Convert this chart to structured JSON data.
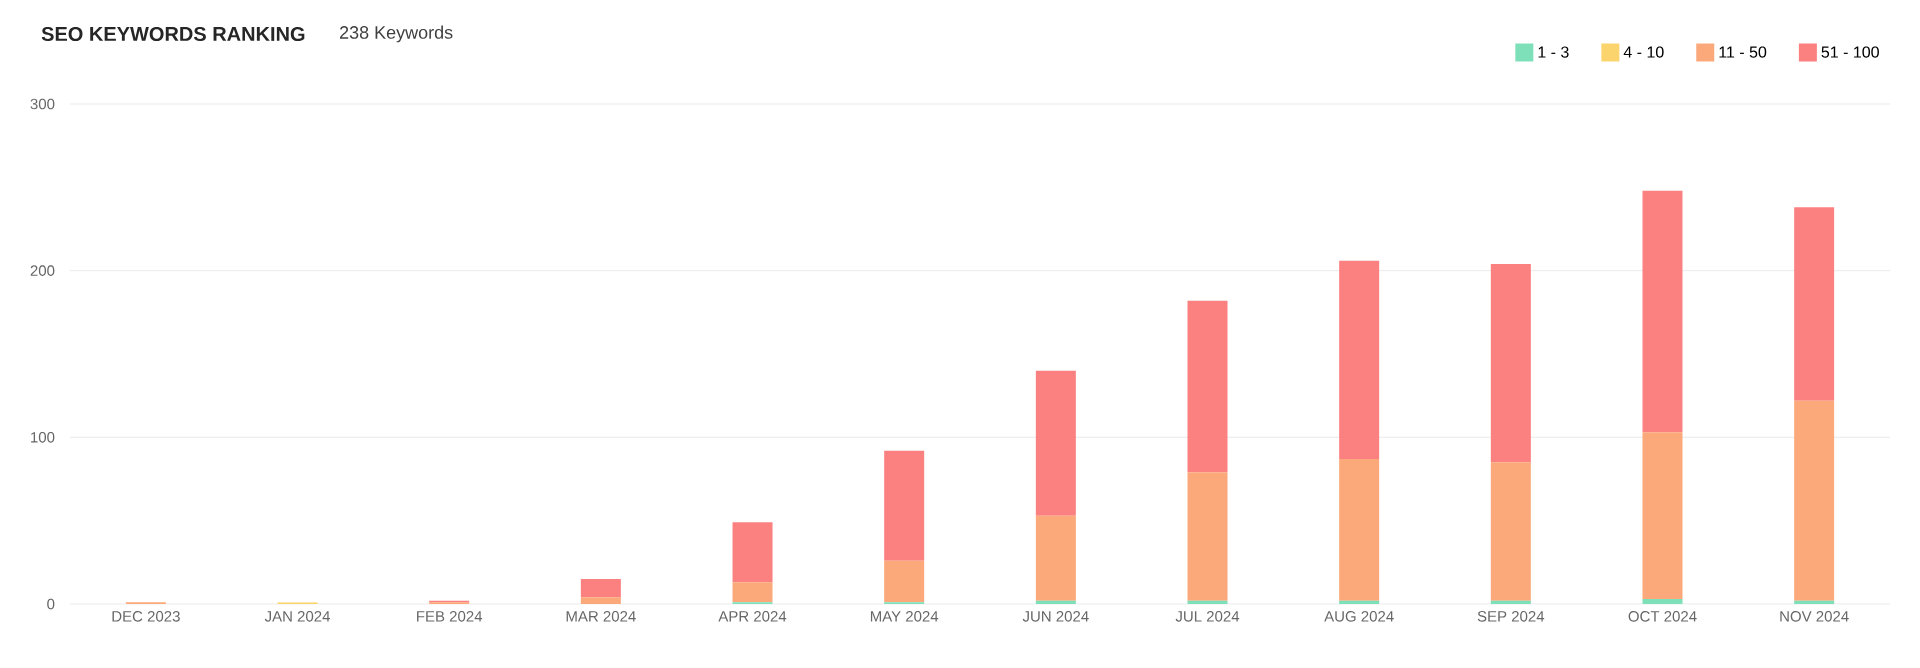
{
  "chart_data": {
    "type": "bar",
    "title": "SEO KEYWORDS RANKING",
    "subtitle": "238 Keywords",
    "categories": [
      "DEC 2023",
      "JAN 2024",
      "FEB 2024",
      "MAR 2024",
      "APR 2024",
      "MAY 2024",
      "JUN 2024",
      "JUL 2024",
      "AUG 2024",
      "SEP 2024",
      "OCT 2024",
      "NOV 2024"
    ],
    "stacked": true,
    "series": [
      {
        "name": "1 - 3",
        "color": "#7ee0b8",
        "values": [
          0,
          0,
          0,
          0,
          1,
          1,
          2,
          2,
          2,
          2,
          3,
          2
        ]
      },
      {
        "name": "4 - 10",
        "color": "#fbd46d",
        "values": [
          0,
          1,
          0,
          0,
          0,
          0,
          0,
          0,
          0,
          0,
          0,
          0
        ]
      },
      {
        "name": "11 - 50",
        "color": "#fba97a",
        "values": [
          1,
          0,
          1,
          4,
          12,
          25,
          51,
          77,
          85,
          83,
          100,
          120
        ]
      },
      {
        "name": "51 - 100",
        "color": "#fb8080",
        "values": [
          0,
          0,
          1,
          11,
          36,
          66,
          87,
          103,
          119,
          119,
          145,
          116
        ]
      }
    ],
    "ylim": [
      0,
      300
    ],
    "yticks": [
      0,
      100,
      200,
      300
    ],
    "grid": "y",
    "legend": "top right"
  }
}
